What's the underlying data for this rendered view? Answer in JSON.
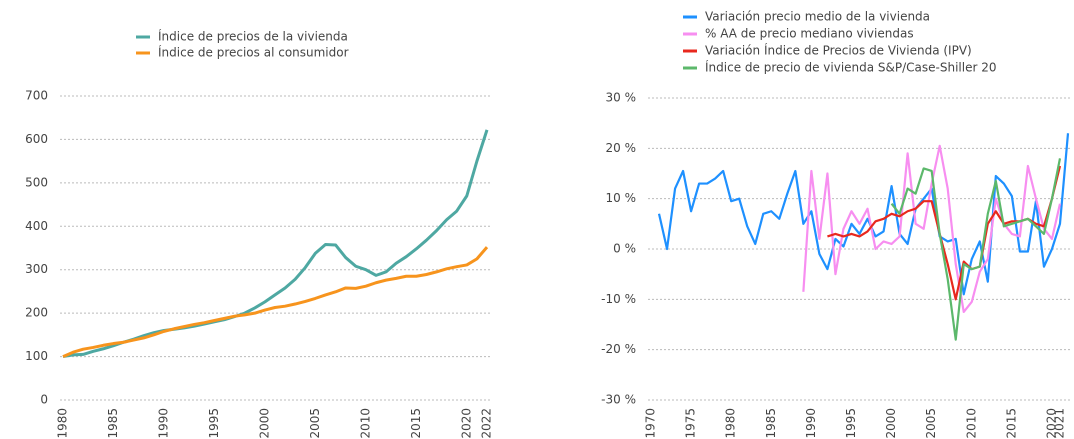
{
  "chart_data": [
    {
      "type": "line",
      "x": [
        1980,
        1981,
        1982,
        1983,
        1984,
        1985,
        1986,
        1987,
        1988,
        1989,
        1990,
        1991,
        1992,
        1993,
        1994,
        1995,
        1996,
        1997,
        1998,
        1999,
        2000,
        2001,
        2002,
        2003,
        2004,
        2005,
        2006,
        2007,
        2008,
        2009,
        2010,
        2011,
        2012,
        2013,
        2014,
        2015,
        2016,
        2017,
        2018,
        2019,
        2020,
        2021,
        2022
      ],
      "series": [
        {
          "name": "Índice de precios de la vivienda",
          "color": "#4ea8a2",
          "values": [
            100,
            104,
            105,
            112,
            118,
            125,
            133,
            140,
            148,
            155,
            160,
            163,
            166,
            170,
            175,
            180,
            185,
            192,
            200,
            212,
            226,
            242,
            258,
            278,
            305,
            338,
            358,
            357,
            328,
            308,
            300,
            287,
            295,
            315,
            330,
            348,
            368,
            390,
            415,
            435,
            470,
            550,
            622
          ]
        },
        {
          "name": "Índice de precios al consumidor",
          "color": "#f7941d",
          "values": [
            100,
            110,
            117,
            121,
            126,
            130,
            133,
            138,
            143,
            150,
            158,
            164,
            169,
            174,
            178,
            183,
            188,
            193,
            196,
            200,
            207,
            213,
            216,
            221,
            227,
            234,
            242,
            249,
            258,
            257,
            262,
            270,
            276,
            280,
            285,
            285,
            289,
            295,
            302,
            307,
            311,
            325,
            352
          ]
        }
      ],
      "xlim": [
        1980,
        2022
      ],
      "xticks": [
        1980,
        1985,
        1990,
        1995,
        2000,
        2005,
        2010,
        2015,
        2020,
        2022
      ],
      "ylim": [
        0,
        700
      ],
      "yticks": [
        0,
        100,
        200,
        300,
        400,
        500,
        600,
        700
      ],
      "grid": true
    },
    {
      "type": "line",
      "x": [
        1971,
        1972,
        1973,
        1974,
        1975,
        1976,
        1977,
        1978,
        1979,
        1980,
        1981,
        1982,
        1983,
        1984,
        1985,
        1986,
        1987,
        1988,
        1989,
        1990,
        1991,
        1992,
        1993,
        1994,
        1995,
        1996,
        1997,
        1998,
        1999,
        2000,
        2001,
        2002,
        2003,
        2004,
        2005,
        2006,
        2007,
        2008,
        2009,
        2010,
        2011,
        2012,
        2013,
        2014,
        2015,
        2016,
        2017,
        2018,
        2019,
        2020,
        2021,
        2022
      ],
      "series": [
        {
          "name": "Variación precio medio de la vivienda",
          "color": "#1e90ff",
          "values": [
            7,
            0,
            12,
            15.5,
            7.5,
            13,
            13,
            14,
            15.5,
            9.5,
            10,
            4.5,
            1,
            7,
            7.5,
            6,
            11,
            15.5,
            5,
            7.5,
            -1,
            -4,
            2,
            0.5,
            5,
            3,
            6,
            2.5,
            3.5,
            12.5,
            3,
            1,
            8,
            10,
            12,
            2.5,
            1.5,
            2,
            -9,
            -2,
            1.5,
            -6.5,
            14.5,
            13,
            10.5,
            -0.5,
            -0.5,
            9.5,
            -3.5,
            0,
            5,
            23
          ]
        },
        {
          "name": "% AA de precio mediano viviendas",
          "color": "#f78ef0",
          "values": [
            null,
            null,
            null,
            null,
            null,
            null,
            null,
            null,
            null,
            null,
            null,
            null,
            null,
            null,
            null,
            null,
            null,
            null,
            -8.5,
            15.5,
            2,
            15,
            -5,
            4,
            7.5,
            5,
            8,
            0,
            1.5,
            1,
            2.5,
            19,
            5,
            4,
            13,
            20.5,
            12,
            -3,
            -12.5,
            -10.5,
            -4.5,
            -2,
            10,
            5,
            3,
            2.5,
            16.5,
            10,
            4,
            2,
            9,
            null
          ]
        },
        {
          "name": "Variación Índice de Precios de Vivienda (IPV)",
          "color": "#e8281e",
          "values": [
            null,
            null,
            null,
            null,
            null,
            null,
            null,
            null,
            null,
            null,
            null,
            null,
            null,
            null,
            null,
            null,
            null,
            null,
            null,
            null,
            null,
            2.5,
            3,
            2.5,
            3,
            2.5,
            3.5,
            5.5,
            6,
            7,
            6.5,
            7.5,
            8,
            9.5,
            9.5,
            3,
            -3,
            -10,
            -2.5,
            -4,
            -3.5,
            5,
            7.5,
            5,
            5.5,
            5.5,
            6,
            5,
            4.5,
            10,
            16.5,
            null
          ]
        },
        {
          "name": "Índice de precio de vivienda S&P/Case-Shiller 20",
          "color": "#5cb86b",
          "values": [
            null,
            null,
            null,
            null,
            null,
            null,
            null,
            null,
            null,
            null,
            null,
            null,
            null,
            null,
            null,
            null,
            null,
            null,
            null,
            null,
            null,
            null,
            null,
            null,
            null,
            null,
            null,
            null,
            null,
            9,
            7,
            12,
            11,
            16,
            15.5,
            3,
            -6,
            -18,
            -3,
            -4,
            -3.5,
            7,
            13.5,
            4.5,
            5,
            5.5,
            6,
            4.5,
            3,
            10,
            18,
            null
          ]
        }
      ],
      "xlim": [
        1970,
        2022
      ],
      "xticks": [
        1970,
        1975,
        1980,
        1985,
        1990,
        1995,
        2000,
        2005,
        2010,
        2015,
        2020,
        2021
      ],
      "ylim": [
        -30,
        30
      ],
      "yticks": [
        {
          "value": -30,
          "label": "-30 %"
        },
        {
          "value": -20,
          "label": "-20 %"
        },
        {
          "value": -10,
          "label": "-10 %"
        },
        {
          "value": 0,
          "label": "0 %"
        },
        {
          "value": 10,
          "label": "10 %"
        },
        {
          "value": 20,
          "label": "20 %"
        },
        {
          "value": 30,
          "label": "30 %"
        }
      ],
      "grid": true
    }
  ]
}
